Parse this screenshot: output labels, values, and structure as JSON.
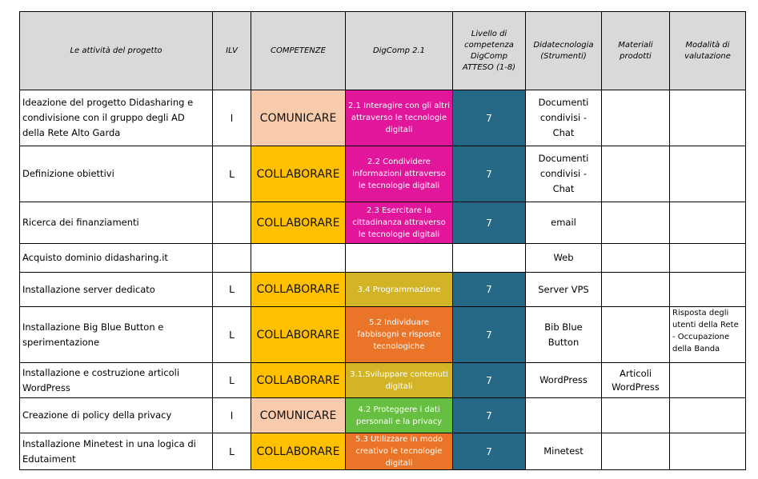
{
  "colors": {
    "header_bg": "#d9d9d9",
    "comunicare": "#f8cbad",
    "collaborare": "#ffc000",
    "level_bg": "#256987",
    "magenta": "#e1169a",
    "olive": "#d2b426",
    "orange": "#ea7428",
    "green": "#66bf40"
  },
  "headers": {
    "activity": "Le attività del progetto",
    "ilv": "ILV",
    "competenze": "COMPETENZE",
    "digcomp": "DigComp 2.1",
    "level": "Livello di competenza DigComp ATTESO (1-8)",
    "didatecnologia": "Didatecnologia (Strumenti)",
    "materiali": "Materiali prodotti",
    "valutazione": "Modalità di valutazione"
  },
  "rows": [
    {
      "activity": "Ideazione del progetto Didasharing e condivisione con il gruppo degli AD della Rete Alto Garda",
      "ilv": "I",
      "competenza": "COMUNICARE",
      "comp_color": "#f8cbad",
      "digcomp": "2.1 Interagire con gli altri attraverso le tecnologie digitali",
      "dig_color": "#e1169a",
      "level": "7",
      "tool": "Documenti condivisi - Chat",
      "material": "",
      "evaluation": ""
    },
    {
      "activity": "Definizione obiettivi",
      "ilv": "L",
      "competenza": "COLLABORARE",
      "comp_color": "#ffc000",
      "digcomp": "2.2 Condividere informazioni attraverso le tecnologie digitali",
      "dig_color": "#e1169a",
      "level": "7",
      "tool": "Documenti condivisi - Chat",
      "material": "",
      "evaluation": ""
    },
    {
      "activity": "Ricerca dei finanziamenti",
      "ilv": "",
      "competenza": "COLLABORARE",
      "comp_color": "#ffc000",
      "digcomp": "2.3 Esercitare la cittadinanza attraverso le tecnologie digitali",
      "dig_color": "#e1169a",
      "level": "7",
      "tool": "email",
      "material": "",
      "evaluation": ""
    },
    {
      "activity": "Acquisto dominio didasharing.it",
      "ilv": "",
      "competenza": "",
      "comp_color": "#ffffff",
      "digcomp": "",
      "dig_color": "#ffffff",
      "level": "",
      "tool": "Web",
      "material": "",
      "evaluation": ""
    },
    {
      "activity": "Installazione server dedicato",
      "ilv": "L",
      "competenza": "COLLABORARE",
      "comp_color": "#ffc000",
      "digcomp": "3.4 Programmazione",
      "dig_color": "#d2b426",
      "level": "7",
      "tool": "Server VPS",
      "material": "",
      "evaluation": ""
    },
    {
      "activity": "Installazione Big Blue Button e sperimentazione",
      "ilv": "L",
      "competenza": "COLLABORARE",
      "comp_color": "#ffc000",
      "digcomp": "5.2 Individuare fabbisogni e risposte tecnologiche",
      "dig_color": "#ea7428",
      "level": "7",
      "tool": "Bib Blue Button",
      "material": "",
      "evaluation": "Risposta degli utenti della Rete - Occupazione della Banda"
    },
    {
      "activity": "Installazione e costruzione articoli WordPress",
      "ilv": "L",
      "competenza": "COLLABORARE",
      "comp_color": "#ffc000",
      "digcomp": "3.1.Sviluppare contenuti digitali",
      "dig_color": "#d2b426",
      "level": "7",
      "tool": "WordPress",
      "material": "Articoli WordPress",
      "evaluation": ""
    },
    {
      "activity": "Creazione di policy della privacy",
      "ilv": "I",
      "competenza": "COMUNICARE",
      "comp_color": "#f8cbad",
      "digcomp": "4.2 Proteggere i dati personali e la privacy",
      "dig_color": "#66bf40",
      "level": "7",
      "tool": "",
      "material": "",
      "evaluation": ""
    },
    {
      "activity": "Installazione Minetest in una logica di Edutaiment",
      "ilv": "L",
      "competenza": "COLLABORARE",
      "comp_color": "#ffc000",
      "digcomp": "5.3 Utilizzare in modo creativo le tecnologie digitali",
      "dig_color": "#ea7428",
      "level": "7",
      "tool": "Minetest",
      "material": "",
      "evaluation": ""
    }
  ]
}
